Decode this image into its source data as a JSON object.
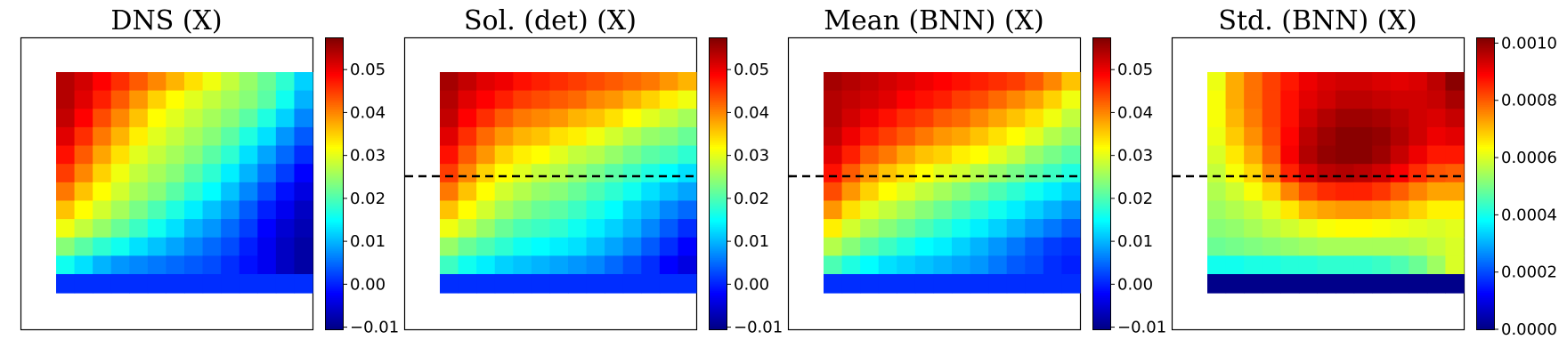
{
  "chart_data": [
    {
      "type": "heatmap",
      "title": "DNS (X)",
      "grid": false,
      "dashed_line": false,
      "colormap": "jet",
      "colorbar": {
        "range": [
          -0.0105,
          0.0575
        ],
        "ticks": [
          "−0.01",
          "0.00",
          "0.01",
          "0.02",
          "0.03",
          "0.04",
          "0.05"
        ],
        "tick_values": [
          -0.01,
          0.0,
          0.01,
          0.02,
          0.03,
          0.04,
          0.05
        ]
      },
      "grid_size": [
        12,
        14
      ],
      "values": [
        [
          0.054,
          0.052,
          0.049,
          0.046,
          0.043,
          0.04,
          0.037,
          0.034,
          0.031,
          0.028,
          0.025,
          0.022,
          0.018,
          0.012
        ],
        [
          0.054,
          0.051,
          0.047,
          0.043,
          0.039,
          0.035,
          0.032,
          0.03,
          0.028,
          0.026,
          0.024,
          0.021,
          0.016,
          0.01
        ],
        [
          0.053,
          0.049,
          0.044,
          0.04,
          0.036,
          0.032,
          0.03,
          0.028,
          0.026,
          0.024,
          0.021,
          0.017,
          0.012,
          0.007
        ],
        [
          0.051,
          0.046,
          0.041,
          0.037,
          0.033,
          0.03,
          0.028,
          0.026,
          0.024,
          0.021,
          0.017,
          0.013,
          0.008,
          0.004
        ],
        [
          0.048,
          0.043,
          0.038,
          0.034,
          0.03,
          0.028,
          0.026,
          0.024,
          0.021,
          0.018,
          0.013,
          0.009,
          0.005,
          0.001
        ],
        [
          0.045,
          0.04,
          0.035,
          0.031,
          0.028,
          0.026,
          0.024,
          0.021,
          0.018,
          0.014,
          0.01,
          0.006,
          0.002,
          -0.002
        ],
        [
          0.041,
          0.036,
          0.032,
          0.029,
          0.026,
          0.024,
          0.021,
          0.018,
          0.015,
          0.011,
          0.007,
          0.003,
          -0.001,
          -0.004
        ],
        [
          0.036,
          0.032,
          0.029,
          0.026,
          0.023,
          0.02,
          0.017,
          0.014,
          0.011,
          0.008,
          0.004,
          0.0,
          -0.003,
          -0.006
        ],
        [
          0.031,
          0.028,
          0.025,
          0.022,
          0.019,
          0.016,
          0.013,
          0.01,
          0.008,
          0.005,
          0.002,
          -0.002,
          -0.005,
          -0.007
        ],
        [
          0.024,
          0.021,
          0.018,
          0.016,
          0.013,
          0.011,
          0.009,
          0.007,
          0.005,
          0.003,
          0.0,
          -0.003,
          -0.006,
          -0.008
        ],
        [
          0.016,
          0.013,
          0.01,
          0.008,
          0.007,
          0.006,
          0.005,
          0.004,
          0.003,
          0.001,
          -0.001,
          -0.003,
          -0.006,
          -0.008
        ],
        [
          0.001,
          0.001,
          0.001,
          0.001,
          0.001,
          0.001,
          0.001,
          0.001,
          0.001,
          0.001,
          0.001,
          0.001,
          0.001,
          0.001
        ]
      ]
    },
    {
      "type": "heatmap",
      "title": "Sol. (det) (X)",
      "grid": false,
      "dashed_line": true,
      "colormap": "jet",
      "colorbar": {
        "range": [
          -0.0105,
          0.0575
        ],
        "ticks": [
          "−0.01",
          "0.00",
          "0.01",
          "0.02",
          "0.03",
          "0.04",
          "0.05"
        ],
        "tick_values": [
          -0.01,
          0.0,
          0.01,
          0.02,
          0.03,
          0.04,
          0.05
        ]
      },
      "grid_size": [
        12,
        14
      ],
      "values": [
        [
          0.055,
          0.053,
          0.051,
          0.05,
          0.048,
          0.047,
          0.046,
          0.045,
          0.044,
          0.043,
          0.042,
          0.041,
          0.039,
          0.037
        ],
        [
          0.054,
          0.051,
          0.049,
          0.047,
          0.045,
          0.044,
          0.043,
          0.042,
          0.04,
          0.039,
          0.037,
          0.035,
          0.033,
          0.031
        ],
        [
          0.053,
          0.049,
          0.046,
          0.043,
          0.041,
          0.04,
          0.039,
          0.037,
          0.036,
          0.034,
          0.032,
          0.03,
          0.028,
          0.026
        ],
        [
          0.051,
          0.046,
          0.042,
          0.039,
          0.037,
          0.036,
          0.034,
          0.033,
          0.031,
          0.029,
          0.027,
          0.025,
          0.024,
          0.022
        ],
        [
          0.048,
          0.043,
          0.039,
          0.035,
          0.033,
          0.032,
          0.03,
          0.028,
          0.027,
          0.025,
          0.023,
          0.021,
          0.02,
          0.018
        ],
        [
          0.045,
          0.04,
          0.035,
          0.032,
          0.03,
          0.028,
          0.027,
          0.025,
          0.023,
          0.021,
          0.019,
          0.017,
          0.015,
          0.013
        ],
        [
          0.041,
          0.036,
          0.032,
          0.029,
          0.027,
          0.025,
          0.024,
          0.022,
          0.02,
          0.018,
          0.016,
          0.013,
          0.011,
          0.009
        ],
        [
          0.036,
          0.032,
          0.029,
          0.026,
          0.024,
          0.022,
          0.021,
          0.019,
          0.017,
          0.015,
          0.012,
          0.01,
          0.007,
          0.005
        ],
        [
          0.031,
          0.028,
          0.025,
          0.022,
          0.02,
          0.019,
          0.018,
          0.016,
          0.014,
          0.012,
          0.01,
          0.007,
          0.004,
          0.001
        ],
        [
          0.025,
          0.022,
          0.02,
          0.018,
          0.016,
          0.015,
          0.014,
          0.013,
          0.011,
          0.009,
          0.007,
          0.004,
          0.001,
          -0.002
        ],
        [
          0.019,
          0.016,
          0.014,
          0.012,
          0.011,
          0.01,
          0.009,
          0.008,
          0.007,
          0.005,
          0.003,
          0.001,
          -0.002,
          -0.004
        ],
        [
          0.001,
          0.001,
          0.001,
          0.001,
          0.001,
          0.001,
          0.001,
          0.001,
          0.001,
          0.001,
          0.001,
          0.001,
          0.001,
          0.001
        ]
      ]
    },
    {
      "type": "heatmap",
      "title": "Mean (BNN) (X)",
      "grid": false,
      "dashed_line": true,
      "colormap": "jet",
      "colorbar": {
        "range": [
          -0.0105,
          0.0575
        ],
        "ticks": [
          "−0.01",
          "0.00",
          "0.01",
          "0.02",
          "0.03",
          "0.04",
          "0.05"
        ],
        "tick_values": [
          -0.01,
          0.0,
          0.01,
          0.02,
          0.03,
          0.04,
          0.05
        ]
      },
      "grid_size": [
        12,
        14
      ],
      "values": [
        [
          0.055,
          0.054,
          0.053,
          0.052,
          0.051,
          0.05,
          0.049,
          0.048,
          0.047,
          0.046,
          0.045,
          0.043,
          0.04,
          0.036
        ],
        [
          0.054,
          0.053,
          0.052,
          0.051,
          0.049,
          0.048,
          0.047,
          0.045,
          0.044,
          0.042,
          0.04,
          0.038,
          0.035,
          0.031
        ],
        [
          0.054,
          0.052,
          0.05,
          0.048,
          0.046,
          0.045,
          0.043,
          0.042,
          0.04,
          0.038,
          0.036,
          0.034,
          0.031,
          0.028
        ],
        [
          0.053,
          0.05,
          0.047,
          0.045,
          0.043,
          0.041,
          0.039,
          0.038,
          0.036,
          0.034,
          0.032,
          0.03,
          0.027,
          0.025
        ],
        [
          0.051,
          0.047,
          0.043,
          0.041,
          0.038,
          0.036,
          0.035,
          0.033,
          0.032,
          0.03,
          0.028,
          0.025,
          0.023,
          0.021
        ],
        [
          0.048,
          0.043,
          0.039,
          0.036,
          0.034,
          0.032,
          0.03,
          0.029,
          0.027,
          0.025,
          0.023,
          0.021,
          0.019,
          0.017
        ],
        [
          0.044,
          0.039,
          0.035,
          0.032,
          0.03,
          0.028,
          0.026,
          0.024,
          0.022,
          0.02,
          0.018,
          0.016,
          0.014,
          0.012
        ],
        [
          0.039,
          0.034,
          0.03,
          0.028,
          0.026,
          0.024,
          0.022,
          0.02,
          0.018,
          0.016,
          0.014,
          0.012,
          0.01,
          0.008
        ],
        [
          0.033,
          0.029,
          0.026,
          0.024,
          0.022,
          0.02,
          0.018,
          0.016,
          0.014,
          0.012,
          0.01,
          0.008,
          0.006,
          0.004
        ],
        [
          0.027,
          0.024,
          0.021,
          0.019,
          0.017,
          0.015,
          0.014,
          0.012,
          0.01,
          0.008,
          0.006,
          0.004,
          0.002,
          0.001
        ],
        [
          0.02,
          0.017,
          0.015,
          0.013,
          0.012,
          0.011,
          0.01,
          0.009,
          0.008,
          0.006,
          0.004,
          0.003,
          0.001,
          0.0
        ],
        [
          0.001,
          0.001,
          0.001,
          0.001,
          0.001,
          0.001,
          0.001,
          0.001,
          0.001,
          0.001,
          0.001,
          0.001,
          0.001,
          0.001
        ]
      ]
    },
    {
      "type": "heatmap",
      "title": "Std. (BNN) (X)",
      "grid": false,
      "dashed_line": true,
      "colormap": "jet",
      "colorbar": {
        "range": [
          0.0,
          0.00102
        ],
        "ticks": [
          "0.0000",
          "0.0002",
          "0.0004",
          "0.0006",
          "0.0008",
          "0.0010"
        ],
        "tick_values": [
          0.0,
          0.0002,
          0.0004,
          0.0006,
          0.0008,
          0.001
        ]
      },
      "grid_size": [
        12,
        14
      ],
      "values": [
        [
          0.00062,
          0.00072,
          0.00078,
          0.00083,
          0.00087,
          0.00091,
          0.00093,
          0.00094,
          0.00094,
          0.00093,
          0.00092,
          0.00093,
          0.00096,
          0.00101
        ],
        [
          0.00063,
          0.00072,
          0.00078,
          0.00083,
          0.00088,
          0.00092,
          0.00094,
          0.00096,
          0.00096,
          0.00095,
          0.00094,
          0.00094,
          0.00095,
          0.00098
        ],
        [
          0.00063,
          0.00071,
          0.00077,
          0.00083,
          0.00088,
          0.00094,
          0.00097,
          0.00099,
          0.00099,
          0.00098,
          0.00096,
          0.00094,
          0.00093,
          0.00095
        ],
        [
          0.00062,
          0.00069,
          0.00075,
          0.00082,
          0.00089,
          0.00096,
          0.00099,
          0.00101,
          0.00101,
          0.001,
          0.00097,
          0.00094,
          0.00091,
          0.00092
        ],
        [
          0.0006,
          0.00066,
          0.00072,
          0.0008,
          0.0009,
          0.00097,
          0.001,
          0.00101,
          0.00101,
          0.00099,
          0.00095,
          0.00091,
          0.00087,
          0.00087
        ],
        [
          0.00058,
          0.00063,
          0.00068,
          0.00076,
          0.00086,
          0.00093,
          0.00096,
          0.00097,
          0.00096,
          0.00094,
          0.0009,
          0.00085,
          0.00081,
          0.0008
        ],
        [
          0.00056,
          0.00059,
          0.00063,
          0.00068,
          0.00076,
          0.00082,
          0.00085,
          0.00086,
          0.00086,
          0.00084,
          0.0008,
          0.00076,
          0.00073,
          0.00073
        ],
        [
          0.00054,
          0.00056,
          0.00058,
          0.00061,
          0.00066,
          0.00071,
          0.00073,
          0.00074,
          0.00074,
          0.00073,
          0.00071,
          0.00068,
          0.00065,
          0.00065
        ],
        [
          0.00052,
          0.00053,
          0.00055,
          0.00057,
          0.00059,
          0.00061,
          0.00063,
          0.00064,
          0.00064,
          0.00063,
          0.00062,
          0.00061,
          0.0006,
          0.00061
        ],
        [
          0.00049,
          0.0005,
          0.00051,
          0.00052,
          0.00053,
          0.00054,
          0.00055,
          0.00055,
          0.00055,
          0.00055,
          0.00055,
          0.00056,
          0.00058,
          0.0006
        ],
        [
          0.0004,
          0.0004,
          0.00041,
          0.00041,
          0.00042,
          0.00042,
          0.00043,
          0.00043,
          0.00043,
          0.00044,
          0.00046,
          0.00049,
          0.00054,
          0.0006
        ],
        [
          1e-05,
          1e-05,
          1e-05,
          1e-05,
          1e-05,
          1e-05,
          1e-05,
          1e-05,
          1e-05,
          1e-05,
          1e-05,
          1e-05,
          1e-05,
          1e-05
        ]
      ]
    }
  ]
}
